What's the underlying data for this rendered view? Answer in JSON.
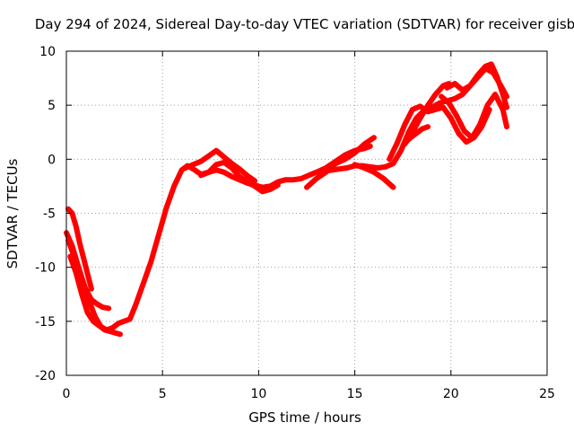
{
  "chart_data": {
    "type": "scatter",
    "title": "Day 294 of 2024, Sidereal Day-to-day VTEC variation (SDTVAR) for receiver gisb",
    "xlabel": "GPS time / hours",
    "ylabel": "SDTVAR / TECUs",
    "xlim": [
      0,
      25
    ],
    "ylim": [
      -20,
      10
    ],
    "xticks": [
      0,
      5,
      10,
      15,
      20,
      25
    ],
    "yticks": [
      -20,
      -15,
      -10,
      -5,
      0,
      5,
      10
    ],
    "grid": true,
    "legend": "none",
    "series": [
      {
        "name": "satellite tracks",
        "color": "#ff0000",
        "style": "thick-line",
        "tracks": [
          {
            "x": [
              0.0,
              0.3,
              0.6,
              0.9,
              1.2,
              1.5,
              1.8,
              2.1,
              2.4,
              2.7,
              3.0,
              3.3,
              3.6,
              4.0,
              4.4,
              4.8,
              5.2,
              5.6,
              6.0,
              6.3,
              6.6,
              7.0,
              7.4,
              7.8,
              8.2,
              8.6,
              9.0,
              9.4,
              9.8,
              10.2,
              10.6,
              11.0,
              11.4,
              11.8,
              12.2,
              12.6,
              13.0,
              13.4,
              13.8,
              14.2,
              14.6,
              15.0,
              15.4,
              15.8,
              16.2,
              16.6,
              17.0,
              17.4,
              17.8,
              18.2,
              18.6,
              19.0,
              19.4,
              19.8,
              20.2,
              20.6,
              21.0,
              21.4,
              21.8,
              22.1,
              22.4,
              22.7,
              22.9
            ],
            "y": [
              -6.8,
              -8.0,
              -9.8,
              -11.5,
              -13.2,
              -14.6,
              -15.5,
              -15.8,
              -15.6,
              -15.2,
              -15.0,
              -14.8,
              -13.5,
              -11.5,
              -9.5,
              -7.0,
              -4.5,
              -2.5,
              -1.0,
              -0.6,
              -0.9,
              -1.4,
              -1.2,
              -1.0,
              -1.2,
              -1.6,
              -1.9,
              -2.2,
              -2.4,
              -2.6,
              -2.5,
              -2.1,
              -1.9,
              -1.9,
              -1.8,
              -1.5,
              -1.2,
              -1.1,
              -1.0,
              -0.9,
              -0.8,
              -0.6,
              -0.6,
              -0.7,
              -0.8,
              -0.7,
              -0.4,
              0.8,
              2.5,
              3.8,
              4.5,
              4.8,
              5.2,
              5.4,
              5.6,
              6.0,
              6.8,
              7.8,
              8.6,
              8.8,
              7.6,
              6.0,
              4.8
            ]
          },
          {
            "x": [
              0.1,
              0.4,
              0.7,
              1.0,
              1.3,
              1.6,
              1.9,
              2.2
            ],
            "y": [
              -7.5,
              -9.0,
              -10.5,
              -12.0,
              -13.0,
              -13.4,
              -13.7,
              -13.8
            ]
          },
          {
            "x": [
              0.2,
              0.5,
              0.8,
              1.1,
              1.4,
              1.7,
              2.0,
              2.4,
              2.8
            ],
            "y": [
              -9.0,
              -10.5,
              -12.5,
              -14.2,
              -15.0,
              -15.4,
              -15.8,
              -16.0,
              -16.2
            ]
          },
          {
            "x": [
              0.1,
              0.3,
              0.5,
              0.7,
              0.9,
              1.1,
              1.3
            ],
            "y": [
              -4.6,
              -5.0,
              -6.2,
              -7.8,
              -9.2,
              -10.6,
              -12.0
            ]
          },
          {
            "x": [
              6.2,
              6.6,
              7.0,
              7.4,
              7.8,
              8.2,
              8.6,
              9.0,
              9.4,
              9.8
            ],
            "y": [
              -0.8,
              -0.5,
              -0.2,
              0.3,
              0.8,
              0.2,
              -0.4,
              -0.9,
              -1.5,
              -2.0
            ]
          },
          {
            "x": [
              7.0,
              7.4,
              7.8,
              8.2,
              8.6,
              9.0,
              9.4,
              9.8,
              10.2,
              10.6,
              11.0
            ],
            "y": [
              -1.5,
              -1.2,
              -0.5,
              -0.3,
              -0.8,
              -1.6,
              -2.1,
              -2.5,
              -3.0,
              -2.8,
              -2.4
            ]
          },
          {
            "x": [
              12.5,
              13.0,
              13.5,
              14.0,
              14.5,
              15.0,
              15.5,
              16.0
            ],
            "y": [
              -2.6,
              -1.8,
              -1.2,
              -0.4,
              0.0,
              0.6,
              1.4,
              2.0
            ]
          },
          {
            "x": [
              13.0,
              13.5,
              14.0,
              14.5,
              15.0,
              15.5,
              15.8
            ],
            "y": [
              -1.2,
              -0.8,
              -0.2,
              0.4,
              0.8,
              1.0,
              1.2
            ]
          },
          {
            "x": [
              15.0,
              15.5,
              16.0,
              16.5,
              17.0
            ],
            "y": [
              -0.5,
              -0.8,
              -1.2,
              -1.8,
              -2.6
            ]
          },
          {
            "x": [
              16.8,
              17.2,
              17.6,
              18.0,
              18.4,
              18.8,
              19.2,
              19.6,
              20.0,
              20.4,
              20.8,
              21.2,
              21.6,
              22.0
            ],
            "y": [
              0.0,
              1.5,
              3.2,
              4.6,
              4.9,
              4.4,
              4.6,
              4.8,
              3.8,
              2.4,
              1.6,
              2.0,
              3.0,
              4.6
            ]
          },
          {
            "x": [
              17.6,
              18.0,
              18.4,
              18.8,
              19.2,
              19.6,
              19.9
            ],
            "y": [
              1.4,
              2.5,
              3.8,
              5.0,
              6.0,
              6.8,
              7.0
            ]
          },
          {
            "x": [
              17.6,
              17.9,
              18.2,
              18.5,
              18.8
            ],
            "y": [
              1.5,
              2.0,
              2.4,
              2.8,
              3.0
            ]
          },
          {
            "x": [
              19.8,
              20.2,
              20.6,
              21.0,
              21.4,
              21.8,
              22.2,
              22.6,
              22.9
            ],
            "y": [
              6.6,
              7.0,
              6.4,
              6.8,
              7.6,
              8.4,
              8.0,
              6.8,
              5.8
            ]
          },
          {
            "x": [
              19.5,
              19.9,
              20.3,
              20.7,
              21.1,
              21.5,
              21.9,
              22.3,
              22.7,
              22.9
            ],
            "y": [
              5.8,
              5.2,
              4.0,
              2.6,
              2.0,
              3.2,
              5.0,
              6.0,
              4.6,
              3.0
            ]
          }
        ]
      }
    ]
  }
}
